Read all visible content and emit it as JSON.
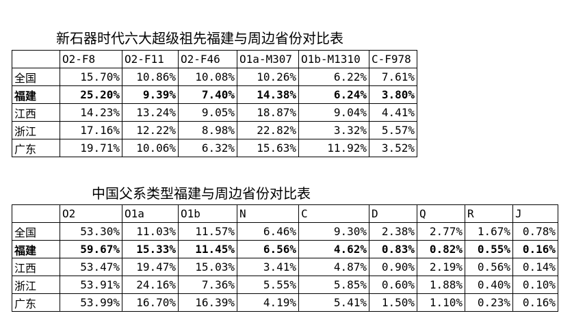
{
  "table1": {
    "title": "新石器时代六大超级祖先福建与周边省份对比表",
    "headers": [
      "",
      "O2-F8",
      "O2-F11",
      "O2-F46",
      "O1a-M307",
      "O1b-M1310",
      "C-F978"
    ],
    "rows": [
      {
        "name": "全国",
        "bold": false,
        "values": [
          "15.70%",
          "10.86%",
          "10.08%",
          "10.26%",
          "6.22%",
          "7.61%"
        ]
      },
      {
        "name": "福建",
        "bold": true,
        "values": [
          "25.20%",
          "9.39%",
          "7.40%",
          "14.38%",
          "6.24%",
          "3.80%"
        ]
      },
      {
        "name": "江西",
        "bold": false,
        "values": [
          "14.23%",
          "13.24%",
          "9.05%",
          "18.87%",
          "9.04%",
          "4.41%"
        ]
      },
      {
        "name": "浙江",
        "bold": false,
        "values": [
          "17.16%",
          "12.22%",
          "8.98%",
          "22.82%",
          "3.32%",
          "5.57%"
        ]
      },
      {
        "name": "广东",
        "bold": false,
        "values": [
          "19.71%",
          "10.06%",
          "6.32%",
          "15.63%",
          "11.92%",
          "3.52%"
        ]
      }
    ]
  },
  "table2": {
    "title": "中国父系类型福建与周边省份对比表",
    "headers": [
      "",
      "O2",
      "O1a",
      "O1b",
      "N",
      "C",
      "D",
      "Q",
      "R",
      "J"
    ],
    "rows": [
      {
        "name": "全国",
        "bold": false,
        "values": [
          "53.30%",
          "11.03%",
          "11.57%",
          "6.46%",
          "9.30%",
          "2.38%",
          "2.77%",
          "1.67%",
          "0.78%"
        ]
      },
      {
        "name": "福建",
        "bold": true,
        "values": [
          "59.67%",
          "15.33%",
          "11.45%",
          "6.56%",
          "4.62%",
          "0.83%",
          "0.82%",
          "0.55%",
          "0.16%"
        ]
      },
      {
        "name": "江西",
        "bold": false,
        "values": [
          "53.47%",
          "19.47%",
          "15.03%",
          "3.41%",
          "4.87%",
          "0.90%",
          "2.19%",
          "0.56%",
          "0.14%"
        ]
      },
      {
        "name": "浙江",
        "bold": false,
        "values": [
          "53.91%",
          "24.16%",
          "7.36%",
          "5.55%",
          "5.85%",
          "0.60%",
          "1.88%",
          "0.40%",
          "0.10%"
        ]
      },
      {
        "name": "广东",
        "bold": false,
        "values": [
          "53.99%",
          "16.70%",
          "16.39%",
          "4.19%",
          "5.41%",
          "1.50%",
          "1.10%",
          "0.23%",
          "0.16%"
        ]
      }
    ]
  }
}
